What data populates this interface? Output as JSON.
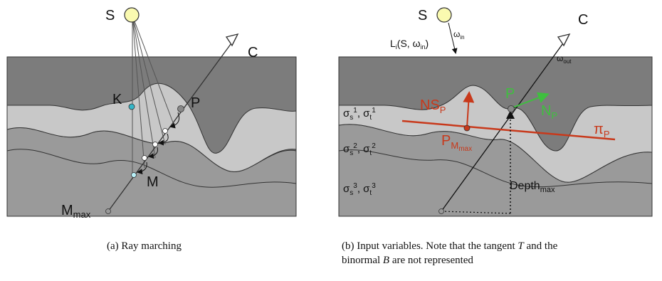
{
  "figure_a": {
    "labels": {
      "source": "S",
      "camera": "C",
      "point_k": "K",
      "point_p": "P",
      "point_m": "M",
      "m_max_base": "M",
      "m_max_sub": "max"
    },
    "caption": "(a)  Ray marching"
  },
  "figure_b": {
    "labels": {
      "source": "S",
      "camera": "C",
      "point_p": "P",
      "incident_light": "L",
      "incident_light_sub": "i",
      "incident_light_args": "(S, ω",
      "incident_light_args_sub": "in",
      "incident_light_close": ")",
      "omega_in": "ω",
      "omega_in_sub": "in",
      "omega_out": "ω",
      "omega_out_sub": "out",
      "ns_p_base": "NS",
      "ns_p_sub": "P",
      "n_p_base": "N",
      "n_p_sub": "P",
      "pi_p_base": "π",
      "pi_p_sub": "P",
      "p_mmax_base": "P",
      "p_mmax_sub": "M",
      "p_mmax_subsub": "max",
      "depth_base": "Depth",
      "depth_sub": "max",
      "layer1": "σ",
      "layer1_s_sub": "s",
      "layer1_s_sup": "1",
      "layer1_t_sub": "t",
      "layer1_t_sup": "1",
      "layer2_s_sup": "2",
      "layer2_t_sup": "2",
      "layer3_s_sup": "3",
      "layer3_t_sup": "3",
      "sigma_sep": ", σ"
    },
    "caption_line1_pre": "(b)  Input variables.  Note that the tangent ",
    "caption_T": "T",
    "caption_line1_post": " and the",
    "caption_line2_pre": "binormal ",
    "caption_B": "B",
    "caption_line2_post": " are not represented"
  },
  "colors": {
    "layer_top": "#c8c8c8",
    "layer_mid": "#9a9a9a",
    "layer_bottom": "#7c7c7c",
    "accent_red": "#c8391b",
    "accent_green": "#3fbf3f",
    "sun_fill": "#fafab0",
    "teal_point": "#35b6c8"
  }
}
